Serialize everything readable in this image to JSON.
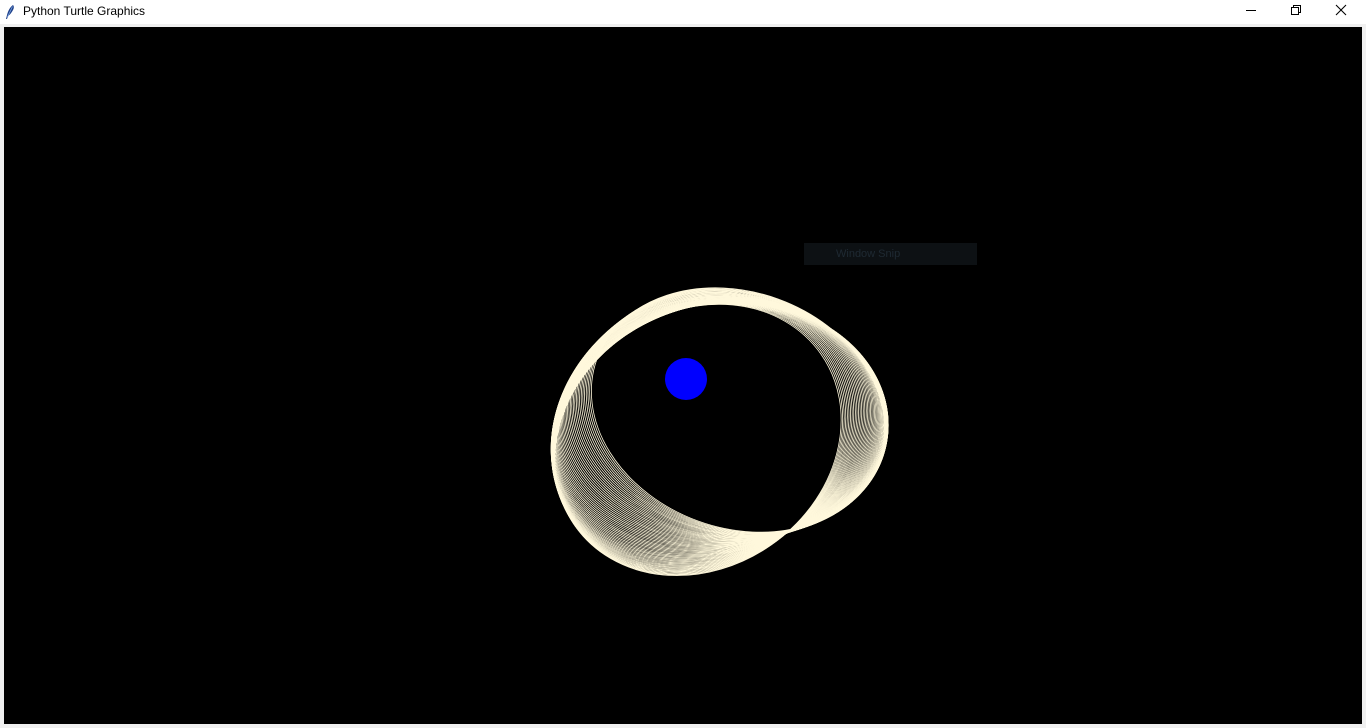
{
  "window": {
    "title": "Python Turtle Graphics",
    "app_icon": "feather-icon",
    "controls": {
      "minimize_icon": "minimize-icon",
      "restore_icon": "restore-icon",
      "close_icon": "close-icon"
    }
  },
  "canvas": {
    "background_color": "#000000",
    "drawing": {
      "stroke_color": "#fff8dc",
      "orbit_line_count": 60
    },
    "center_body": {
      "color": "#0000ff"
    }
  },
  "tooltip": {
    "label": "Window Snip"
  }
}
